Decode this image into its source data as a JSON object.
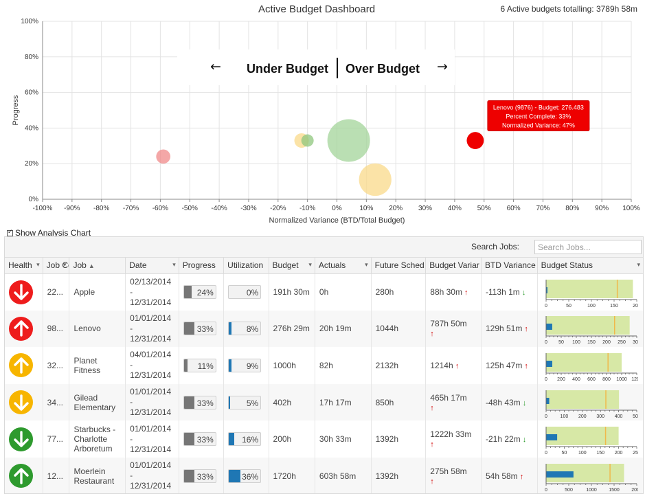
{
  "header": {
    "title": "Active Budget Dashboard",
    "summary": "6 Active budgets totalling: 3789h 58m"
  },
  "chart_data": {
    "type": "scatter",
    "title": "Active Budget Dashboard",
    "xlabel": "Normalized Variance (BTD/Total Budget)",
    "ylabel": "Progress",
    "xlim": [
      -100,
      100
    ],
    "ylim": [
      0,
      100
    ],
    "x_ticks": [
      "-100%",
      "-90%",
      "-80%",
      "-70%",
      "-60%",
      "-50%",
      "-40%",
      "-30%",
      "-20%",
      "-10%",
      "0%",
      "10%",
      "20%",
      "30%",
      "40%",
      "50%",
      "60%",
      "70%",
      "80%",
      "90%",
      "100%"
    ],
    "y_ticks": [
      "0%",
      "20%",
      "40%",
      "60%",
      "80%",
      "100%"
    ],
    "grid": true,
    "overlay": {
      "left": "Under Budget",
      "right": "Over Budget"
    },
    "points": [
      {
        "x": -59,
        "y": 24,
        "size": 191.5,
        "color": "#f08a8a"
      },
      {
        "x": -12,
        "y": 33,
        "size": 200,
        "color": "#f9d98a"
      },
      {
        "x": -10,
        "y": 33,
        "size": 120,
        "color": "#8fc77e"
      },
      {
        "x": 4,
        "y": 33,
        "size": 1720,
        "color": "#a3d49a"
      },
      {
        "x": 13,
        "y": 11,
        "size": 1000,
        "color": "#f9d98a"
      },
      {
        "x": 47,
        "y": 33,
        "size": 276.5,
        "color": "#ee0000"
      }
    ],
    "tooltip": {
      "lines": [
        "Lenovo (9876) - Budget: 276.483",
        "Percent Complete: 33%",
        "Normalized Variance: 47%"
      ]
    }
  },
  "show_analysis": {
    "label": "Show Analysis Chart",
    "checked": true
  },
  "grid": {
    "search_label": "Search Jobs:",
    "search_placeholder": "Search Jobs...",
    "columns": [
      "Health",
      "Job Co",
      "Job",
      "Date",
      "Progress",
      "Utilization",
      "Budget",
      "Actuals",
      "Future Sched",
      "Budget Variar",
      "BTD Variance",
      "Budget Status"
    ],
    "rows": [
      {
        "health": "down",
        "health_color": "#ee1c1c",
        "code": "22...",
        "job": "Apple",
        "date_start": "02/13/2014",
        "date_sep": "-",
        "date_end": "12/31/2014",
        "progress": 0.24,
        "progress_label": "24%",
        "utilization": 0.0,
        "utilization_label": "0%",
        "budget": "191h 30m",
        "actuals": "0h",
        "future": "280h",
        "budget_var": "88h 30m",
        "budget_var_dir": "up",
        "btd_var": "-113h 1m",
        "btd_var_dir": "down",
        "status_budget": 191.5,
        "status_actual": 0,
        "status_max": 200,
        "status_ticks": [
          "0",
          "50",
          "100",
          "150",
          "200"
        ]
      },
      {
        "health": "up",
        "health_color": "#ee1c1c",
        "code": "98...",
        "job": "Lenovo",
        "date_start": "01/01/2014",
        "date_sep": "-",
        "date_end": "12/31/2014",
        "progress": 0.33,
        "progress_label": "33%",
        "utilization": 0.08,
        "utilization_label": "8%",
        "budget": "276h 29m",
        "actuals": "20h 19m",
        "future": "1044h",
        "budget_var": "787h 50m",
        "budget_var_dir": "up",
        "btd_var": "129h 51m",
        "btd_var_dir": "up",
        "status_budget": 276.5,
        "status_actual": 20.3,
        "status_max": 300,
        "status_ticks": [
          "0",
          "50",
          "100",
          "150",
          "200",
          "250",
          "300"
        ]
      },
      {
        "health": "up",
        "health_color": "#f7b500",
        "code": "32...",
        "job": "Planet Fitness",
        "date_start": "04/01/2014",
        "date_sep": "-",
        "date_end": "12/31/2014",
        "progress": 0.11,
        "progress_label": "11%",
        "utilization": 0.09,
        "utilization_label": "9%",
        "budget": "1000h",
        "actuals": "82h",
        "future": "2132h",
        "budget_var": "1214h",
        "budget_var_dir": "up",
        "btd_var": "125h 47m",
        "btd_var_dir": "up",
        "status_budget": 1000,
        "status_actual": 82,
        "status_max": 1200,
        "status_ticks": [
          "0",
          "200",
          "400",
          "600",
          "800",
          "1000",
          "1200"
        ]
      },
      {
        "health": "down",
        "health_color": "#f7b500",
        "code": "34...",
        "job": "Gilead Elementary",
        "date_start": "01/01/2014",
        "date_sep": "-",
        "date_end": "12/31/2014",
        "progress": 0.33,
        "progress_label": "33%",
        "utilization": 0.05,
        "utilization_label": "5%",
        "budget": "402h",
        "actuals": "17h 17m",
        "future": "850h",
        "budget_var": "465h 17m",
        "budget_var_dir": "up",
        "btd_var": "-48h 43m",
        "btd_var_dir": "down",
        "status_budget": 402,
        "status_actual": 17.3,
        "status_max": 500,
        "status_ticks": [
          "0",
          "100",
          "200",
          "300",
          "400",
          "500"
        ]
      },
      {
        "health": "down",
        "health_color": "#2e9a2e",
        "code": "77...",
        "job": "Starbucks - Charlotte Arboretum",
        "date_start": "01/01/2014",
        "date_sep": "-",
        "date_end": "12/31/2014",
        "progress": 0.33,
        "progress_label": "33%",
        "utilization": 0.16,
        "utilization_label": "16%",
        "budget": "200h",
        "actuals": "30h 33m",
        "future": "1392h",
        "budget_var": "1222h 33m",
        "budget_var_dir": "up",
        "btd_var": "-21h 22m",
        "btd_var_dir": "down",
        "status_budget": 200,
        "status_actual": 30.5,
        "status_max": 250,
        "status_ticks": [
          "0",
          "50",
          "100",
          "150",
          "200",
          "250"
        ]
      },
      {
        "health": "up",
        "health_color": "#2e9a2e",
        "code": "12...",
        "job": "Moerlein Restaurant",
        "date_start": "01/01/2014",
        "date_sep": "-",
        "date_end": "12/31/2014",
        "progress": 0.33,
        "progress_label": "33%",
        "utilization": 0.36,
        "utilization_label": "36%",
        "budget": "1720h",
        "actuals": "603h 58m",
        "future": "1392h",
        "budget_var": "275h 58m",
        "budget_var_dir": "up",
        "btd_var": "54h 58m",
        "btd_var_dir": "up",
        "status_budget": 1720,
        "status_actual": 604,
        "status_max": 2000,
        "status_ticks": [
          "0",
          "500",
          "1000",
          "1500",
          "2000"
        ]
      }
    ]
  }
}
